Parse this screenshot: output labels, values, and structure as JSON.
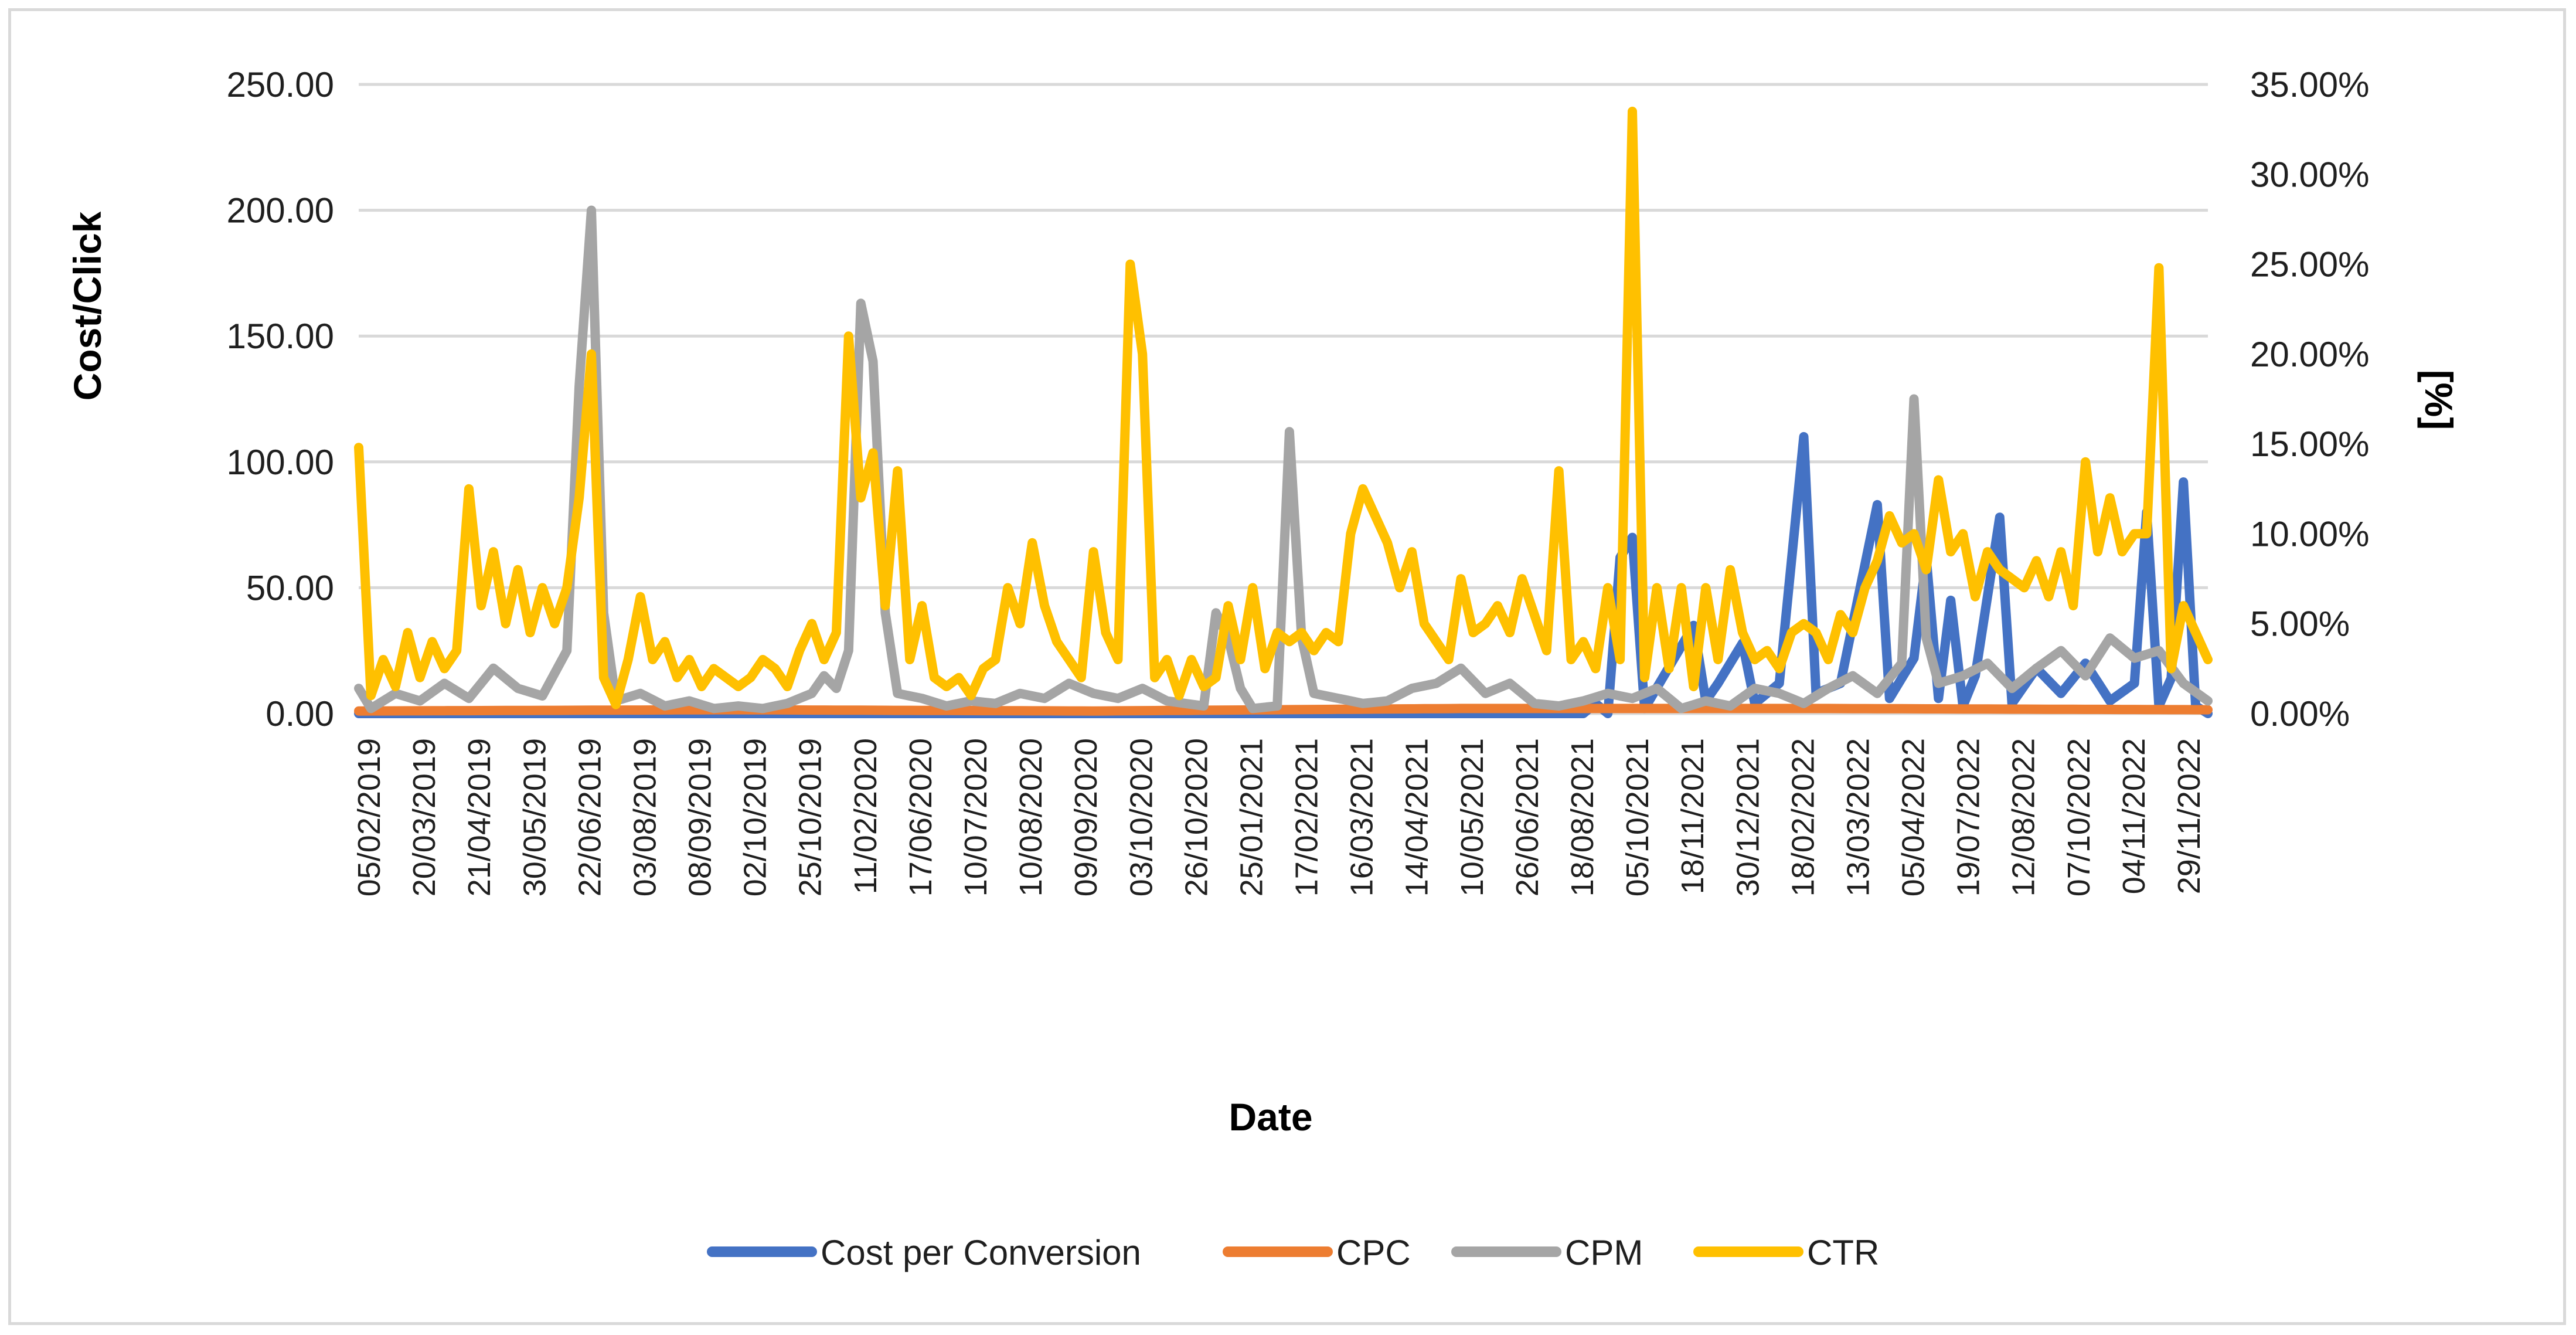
{
  "chart_data": {
    "type": "line",
    "title": "",
    "xlabel": "Date",
    "ylabel": "Cost/Click",
    "y2label": "[%]",
    "ylim": [
      0,
      250
    ],
    "y2lim": [
      0,
      0.35
    ],
    "grid": true,
    "legend_position": "bottom",
    "yticks": [
      "0.00",
      "50.00",
      "100.00",
      "150.00",
      "200.00",
      "250.00"
    ],
    "y2ticks": [
      "0.00%",
      "5.00%",
      "10.00%",
      "15.00%",
      "20.00%",
      "25.00%",
      "30.00%",
      "35.00%"
    ],
    "categories": [
      "05/02/2019",
      "20/03/2019",
      "21/04/2019",
      "30/05/2019",
      "22/06/2019",
      "03/08/2019",
      "08/09/2019",
      "02/10/2019",
      "25/10/2019",
      "11/02/2020",
      "17/06/2020",
      "10/07/2020",
      "10/08/2020",
      "09/09/2020",
      "03/10/2020",
      "26/10/2020",
      "25/01/2021",
      "17/02/2021",
      "16/03/2021",
      "14/04/2021",
      "10/05/2021",
      "26/06/2021",
      "18/08/2021",
      "05/10/2021",
      "18/11/2021",
      "30/12/2021",
      "18/02/2022",
      "13/03/2022",
      "05/04/2022",
      "19/07/2022",
      "12/08/2022",
      "07/10/2022",
      "04/11/2022",
      "29/11/2022"
    ],
    "series": [
      {
        "name": "Cost per Conversion",
        "axis": "left",
        "color": "#4472C4",
        "anchors": [
          [
            0,
            0
          ],
          [
            100,
            0
          ],
          [
            101,
            4
          ],
          [
            102,
            0
          ],
          [
            103,
            62
          ],
          [
            104,
            70
          ],
          [
            105,
            2
          ],
          [
            109,
            35
          ],
          [
            110,
            5
          ],
          [
            111,
            12
          ],
          [
            113,
            28
          ],
          [
            114,
            4
          ],
          [
            116,
            12
          ],
          [
            118,
            110
          ],
          [
            119,
            8
          ],
          [
            121,
            12
          ],
          [
            124,
            83
          ],
          [
            125,
            6
          ],
          [
            127,
            22
          ],
          [
            128,
            62
          ],
          [
            129,
            6
          ],
          [
            130,
            45
          ],
          [
            131,
            3
          ],
          [
            132,
            15
          ],
          [
            134,
            78
          ],
          [
            135,
            4
          ],
          [
            137,
            18
          ],
          [
            139,
            8
          ],
          [
            141,
            20
          ],
          [
            143,
            5
          ],
          [
            145,
            12
          ],
          [
            146,
            80
          ],
          [
            147,
            3
          ],
          [
            148,
            14
          ],
          [
            149,
            92
          ],
          [
            150,
            3
          ],
          [
            151,
            0
          ]
        ]
      },
      {
        "name": "CPC",
        "axis": "left",
        "color": "#ED7D31",
        "anchors": [
          [
            0,
            1
          ],
          [
            30,
            1.5
          ],
          [
            60,
            1
          ],
          [
            90,
            2
          ],
          [
            120,
            2
          ],
          [
            151,
            1.5
          ]
        ]
      },
      {
        "name": "CPM",
        "axis": "left",
        "color": "#A5A5A5",
        "anchors": [
          [
            0,
            10
          ],
          [
            1,
            2
          ],
          [
            3,
            8
          ],
          [
            5,
            5
          ],
          [
            7,
            12
          ],
          [
            9,
            6
          ],
          [
            11,
            18
          ],
          [
            13,
            10
          ],
          [
            15,
            7
          ],
          [
            17,
            25
          ],
          [
            18,
            130
          ],
          [
            19,
            200
          ],
          [
            20,
            40
          ],
          [
            21,
            5
          ],
          [
            23,
            8
          ],
          [
            25,
            3
          ],
          [
            27,
            5
          ],
          [
            29,
            2
          ],
          [
            31,
            3
          ],
          [
            33,
            2
          ],
          [
            35,
            4
          ],
          [
            37,
            8
          ],
          [
            38,
            15
          ],
          [
            39,
            10
          ],
          [
            40,
            25
          ],
          [
            41,
            163
          ],
          [
            42,
            140
          ],
          [
            43,
            40
          ],
          [
            44,
            8
          ],
          [
            46,
            6
          ],
          [
            48,
            3
          ],
          [
            50,
            5
          ],
          [
            52,
            4
          ],
          [
            54,
            8
          ],
          [
            56,
            6
          ],
          [
            58,
            12
          ],
          [
            60,
            8
          ],
          [
            62,
            6
          ],
          [
            64,
            10
          ],
          [
            66,
            5
          ],
          [
            69,
            3
          ],
          [
            70,
            40
          ],
          [
            71,
            30
          ],
          [
            72,
            10
          ],
          [
            73,
            2
          ],
          [
            75,
            3
          ],
          [
            76,
            112
          ],
          [
            77,
            30
          ],
          [
            78,
            8
          ],
          [
            80,
            6
          ],
          [
            82,
            4
          ],
          [
            84,
            5
          ],
          [
            86,
            10
          ],
          [
            88,
            12
          ],
          [
            90,
            18
          ],
          [
            92,
            8
          ],
          [
            94,
            12
          ],
          [
            96,
            4
          ],
          [
            98,
            3
          ],
          [
            100,
            5
          ],
          [
            102,
            8
          ],
          [
            104,
            6
          ],
          [
            106,
            10
          ],
          [
            108,
            2
          ],
          [
            110,
            5
          ],
          [
            112,
            3
          ],
          [
            114,
            10
          ],
          [
            116,
            8
          ],
          [
            118,
            4
          ],
          [
            120,
            10
          ],
          [
            122,
            15
          ],
          [
            124,
            8
          ],
          [
            126,
            20
          ],
          [
            127,
            125
          ],
          [
            128,
            30
          ],
          [
            129,
            12
          ],
          [
            131,
            15
          ],
          [
            133,
            20
          ],
          [
            135,
            10
          ],
          [
            137,
            18
          ],
          [
            139,
            25
          ],
          [
            141,
            15
          ],
          [
            143,
            30
          ],
          [
            145,
            22
          ],
          [
            147,
            25
          ],
          [
            149,
            12
          ],
          [
            151,
            5
          ]
        ]
      },
      {
        "name": "CTR",
        "axis": "right",
        "color": "#FFC000",
        "anchors": [
          [
            0,
            0.148
          ],
          [
            1,
            0.01
          ],
          [
            2,
            0.03
          ],
          [
            3,
            0.015
          ],
          [
            4,
            0.045
          ],
          [
            5,
            0.02
          ],
          [
            6,
            0.04
          ],
          [
            7,
            0.025
          ],
          [
            8,
            0.035
          ],
          [
            9,
            0.125
          ],
          [
            10,
            0.06
          ],
          [
            11,
            0.09
          ],
          [
            12,
            0.05
          ],
          [
            13,
            0.08
          ],
          [
            14,
            0.045
          ],
          [
            15,
            0.07
          ],
          [
            16,
            0.05
          ],
          [
            17,
            0.07
          ],
          [
            18,
            0.12
          ],
          [
            19,
            0.2
          ],
          [
            20,
            0.02
          ],
          [
            21,
            0.005
          ],
          [
            22,
            0.03
          ],
          [
            23,
            0.065
          ],
          [
            24,
            0.03
          ],
          [
            25,
            0.04
          ],
          [
            26,
            0.02
          ],
          [
            27,
            0.03
          ],
          [
            28,
            0.015
          ],
          [
            29,
            0.025
          ],
          [
            30,
            0.02
          ],
          [
            31,
            0.015
          ],
          [
            32,
            0.02
          ],
          [
            33,
            0.03
          ],
          [
            34,
            0.025
          ],
          [
            35,
            0.015
          ],
          [
            36,
            0.035
          ],
          [
            37,
            0.05
          ],
          [
            38,
            0.03
          ],
          [
            39,
            0.045
          ],
          [
            40,
            0.21
          ],
          [
            41,
            0.12
          ],
          [
            42,
            0.145
          ],
          [
            43,
            0.06
          ],
          [
            44,
            0.135
          ],
          [
            45,
            0.03
          ],
          [
            46,
            0.06
          ],
          [
            47,
            0.02
          ],
          [
            48,
            0.015
          ],
          [
            49,
            0.02
          ],
          [
            50,
            0.01
          ],
          [
            51,
            0.025
          ],
          [
            52,
            0.03
          ],
          [
            53,
            0.07
          ],
          [
            54,
            0.05
          ],
          [
            55,
            0.095
          ],
          [
            56,
            0.06
          ],
          [
            57,
            0.04
          ],
          [
            58,
            0.03
          ],
          [
            59,
            0.02
          ],
          [
            60,
            0.09
          ],
          [
            61,
            0.045
          ],
          [
            62,
            0.03
          ],
          [
            63,
            0.25
          ],
          [
            64,
            0.2
          ],
          [
            65,
            0.02
          ],
          [
            66,
            0.03
          ],
          [
            67,
            0.01
          ],
          [
            68,
            0.03
          ],
          [
            69,
            0.015
          ],
          [
            70,
            0.02
          ],
          [
            71,
            0.06
          ],
          [
            72,
            0.03
          ],
          [
            73,
            0.07
          ],
          [
            74,
            0.025
          ],
          [
            75,
            0.045
          ],
          [
            76,
            0.04
          ],
          [
            77,
            0.045
          ],
          [
            78,
            0.035
          ],
          [
            79,
            0.045
          ],
          [
            80,
            0.04
          ],
          [
            81,
            0.1
          ],
          [
            82,
            0.125
          ],
          [
            83,
            0.11
          ],
          [
            84,
            0.095
          ],
          [
            85,
            0.07
          ],
          [
            86,
            0.09
          ],
          [
            87,
            0.05
          ],
          [
            88,
            0.04
          ],
          [
            89,
            0.03
          ],
          [
            90,
            0.075
          ],
          [
            91,
            0.045
          ],
          [
            92,
            0.05
          ],
          [
            93,
            0.06
          ],
          [
            94,
            0.045
          ],
          [
            95,
            0.075
          ],
          [
            96,
            0.055
          ],
          [
            97,
            0.035
          ],
          [
            98,
            0.135
          ],
          [
            99,
            0.03
          ],
          [
            100,
            0.04
          ],
          [
            101,
            0.025
          ],
          [
            102,
            0.07
          ],
          [
            103,
            0.03
          ],
          [
            104,
            0.335
          ],
          [
            105,
            0.02
          ],
          [
            106,
            0.07
          ],
          [
            107,
            0.025
          ],
          [
            108,
            0.07
          ],
          [
            109,
            0.015
          ],
          [
            110,
            0.07
          ],
          [
            111,
            0.03
          ],
          [
            112,
            0.08
          ],
          [
            113,
            0.045
          ],
          [
            114,
            0.03
          ],
          [
            115,
            0.035
          ],
          [
            116,
            0.025
          ],
          [
            117,
            0.045
          ],
          [
            118,
            0.05
          ],
          [
            119,
            0.045
          ],
          [
            120,
            0.03
          ],
          [
            121,
            0.055
          ],
          [
            122,
            0.045
          ],
          [
            123,
            0.07
          ],
          [
            124,
            0.085
          ],
          [
            125,
            0.11
          ],
          [
            126,
            0.095
          ],
          [
            127,
            0.1
          ],
          [
            128,
            0.08
          ],
          [
            129,
            0.13
          ],
          [
            130,
            0.09
          ],
          [
            131,
            0.1
          ],
          [
            132,
            0.065
          ],
          [
            133,
            0.09
          ],
          [
            134,
            0.08
          ],
          [
            135,
            0.075
          ],
          [
            136,
            0.07
          ],
          [
            137,
            0.085
          ],
          [
            138,
            0.065
          ],
          [
            139,
            0.09
          ],
          [
            140,
            0.06
          ],
          [
            141,
            0.14
          ],
          [
            142,
            0.09
          ],
          [
            143,
            0.12
          ],
          [
            144,
            0.09
          ],
          [
            145,
            0.1
          ],
          [
            146,
            0.1
          ],
          [
            147,
            0.248
          ],
          [
            148,
            0.025
          ],
          [
            149,
            0.06
          ],
          [
            150,
            0.045
          ],
          [
            151,
            0.03
          ]
        ]
      }
    ]
  }
}
